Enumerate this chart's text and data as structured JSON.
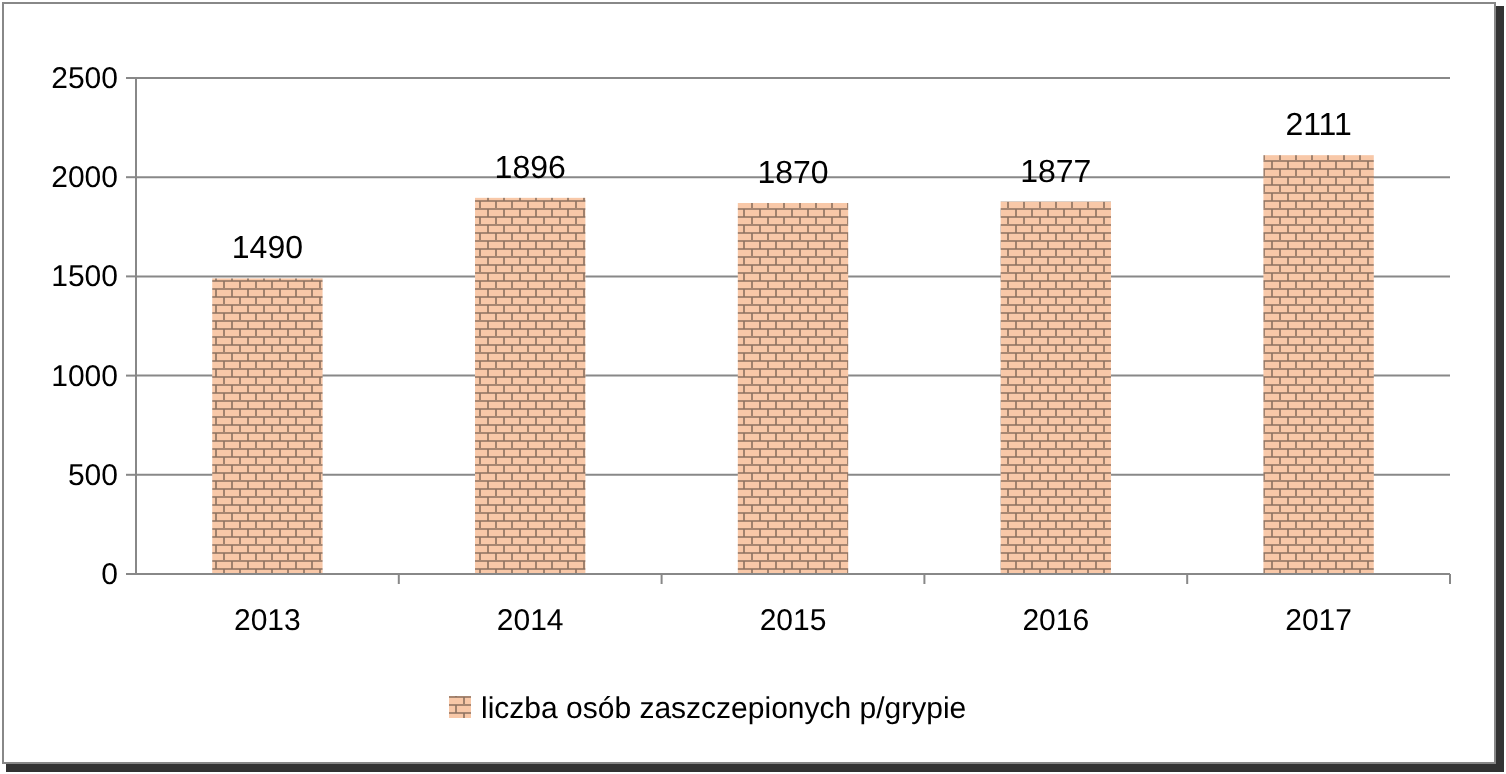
{
  "chart_data": {
    "type": "bar",
    "categories": [
      "2013",
      "2014",
      "2015",
      "2016",
      "2017"
    ],
    "series": [
      {
        "name": "liczba osób zaszczepionych p/grypie",
        "color": "#f8c8a8",
        "values": [
          1490,
          1896,
          1870,
          1877,
          2111
        ]
      }
    ],
    "ylim": [
      0,
      2500
    ],
    "yticks": [
      0,
      500,
      1000,
      1500,
      2000,
      2500
    ],
    "grid": "y",
    "legend": "bottom",
    "data_labels": true
  }
}
